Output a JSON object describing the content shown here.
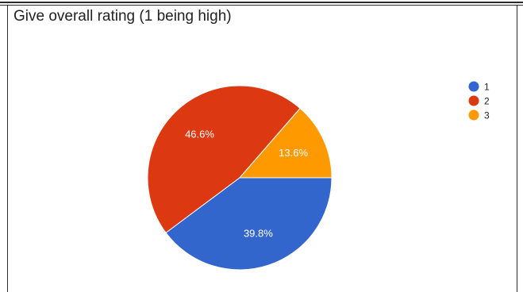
{
  "chart_data": {
    "type": "pie",
    "title": "Give overall rating (1 being high)",
    "categories": [
      "1",
      "2",
      "3"
    ],
    "values": [
      39.8,
      46.6,
      13.6
    ],
    "labels": [
      "39.8%",
      "46.6%",
      "13.6%"
    ],
    "colors": [
      "#3366cc",
      "#dc3912",
      "#ff9900"
    ],
    "legend_position": "right"
  }
}
